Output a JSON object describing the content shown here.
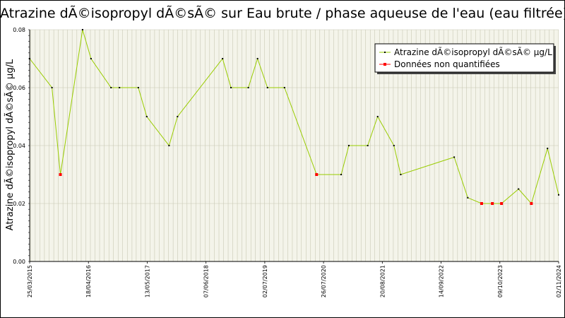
{
  "chart_data": {
    "type": "line",
    "title": "Atrazine dÃ©isopropyl dÃ©sÃ© sur Eau brute / phase aqueuse de l'eau (eau filtrée)",
    "xlabel": "",
    "ylabel": "Atrazine dÃ©isopropyl dÃ©sÃ© µg/L",
    "ylim": [
      0.0,
      0.08
    ],
    "y_ticks": [
      "0.00",
      "0.02",
      "0.04",
      "0.06",
      "0.08"
    ],
    "x_ticks": [
      "25/03/2015",
      "18/04/2016",
      "13/05/2017",
      "07/06/2018",
      "02/07/2019",
      "26/07/2020",
      "20/08/2021",
      "14/09/2022",
      "09/10/2023",
      "02/11/2024"
    ],
    "x_range": [
      "2015-03-25",
      "2024-11-02"
    ],
    "grid": true,
    "legend_position": "top-right",
    "series": [
      {
        "name": "Atrazine dÃ©isopropyl dÃ©sÃ© µg/L",
        "line_color": "#99cc00",
        "marker_color": "#000000",
        "points": [
          {
            "x": "2015-03-25",
            "y": 0.07
          },
          {
            "x": "2015-08-20",
            "y": 0.06
          },
          {
            "x": "2015-10-15",
            "y": 0.03,
            "unquantified": true
          },
          {
            "x": "2016-03-10",
            "y": 0.08
          },
          {
            "x": "2016-05-05",
            "y": 0.07
          },
          {
            "x": "2016-09-15",
            "y": 0.06
          },
          {
            "x": "2016-11-10",
            "y": 0.06
          },
          {
            "x": "2017-03-15",
            "y": 0.06
          },
          {
            "x": "2017-05-10",
            "y": 0.05
          },
          {
            "x": "2017-10-05",
            "y": 0.04
          },
          {
            "x": "2017-11-30",
            "y": 0.05
          },
          {
            "x": "2018-09-25",
            "y": 0.07
          },
          {
            "x": "2018-11-20",
            "y": 0.06
          },
          {
            "x": "2019-03-15",
            "y": 0.06
          },
          {
            "x": "2019-05-15",
            "y": 0.07
          },
          {
            "x": "2019-07-20",
            "y": 0.06
          },
          {
            "x": "2019-11-10",
            "y": 0.06
          },
          {
            "x": "2020-06-10",
            "y": 0.03,
            "unquantified": true
          },
          {
            "x": "2020-11-20",
            "y": 0.03
          },
          {
            "x": "2021-01-10",
            "y": 0.04
          },
          {
            "x": "2021-05-15",
            "y": 0.04
          },
          {
            "x": "2021-07-20",
            "y": 0.05
          },
          {
            "x": "2021-11-05",
            "y": 0.04
          },
          {
            "x": "2021-12-20",
            "y": 0.03
          },
          {
            "x": "2022-12-10",
            "y": 0.036
          },
          {
            "x": "2023-03-10",
            "y": 0.022
          },
          {
            "x": "2023-06-10",
            "y": 0.02,
            "unquantified": true
          },
          {
            "x": "2023-08-20",
            "y": 0.02,
            "unquantified": true
          },
          {
            "x": "2023-10-20",
            "y": 0.02,
            "unquantified": true
          },
          {
            "x": "2024-02-10",
            "y": 0.025
          },
          {
            "x": "2024-05-05",
            "y": 0.02,
            "unquantified": true
          },
          {
            "x": "2024-08-20",
            "y": 0.039
          },
          {
            "x": "2024-11-02",
            "y": 0.023
          }
        ]
      },
      {
        "name": "Données non quantifiées",
        "marker_color": "#ff0000"
      }
    ]
  }
}
